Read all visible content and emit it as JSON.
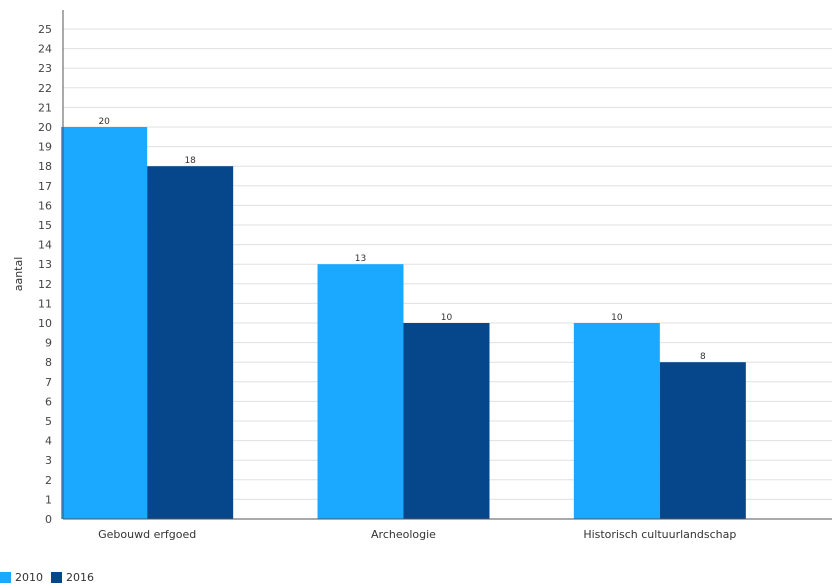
{
  "chart_data": {
    "type": "bar",
    "title": "",
    "xlabel": "",
    "ylabel": "aantal",
    "ylim": [
      0,
      25
    ],
    "yticks": [
      0,
      1,
      2,
      3,
      4,
      5,
      6,
      7,
      8,
      9,
      10,
      11,
      12,
      13,
      14,
      15,
      16,
      17,
      18,
      19,
      20,
      21,
      22,
      23,
      24,
      25
    ],
    "grid": true,
    "legend_position": "bottom-left",
    "categories": [
      "Gebouwd erfgoed",
      "Archeologie",
      "Historisch cultuurlandschap"
    ],
    "series": [
      {
        "name": "2010",
        "color": "#1ba8ff",
        "values": [
          20,
          13,
          10
        ]
      },
      {
        "name": "2016",
        "color": "#06478c",
        "values": [
          18,
          10,
          8
        ]
      }
    ]
  }
}
